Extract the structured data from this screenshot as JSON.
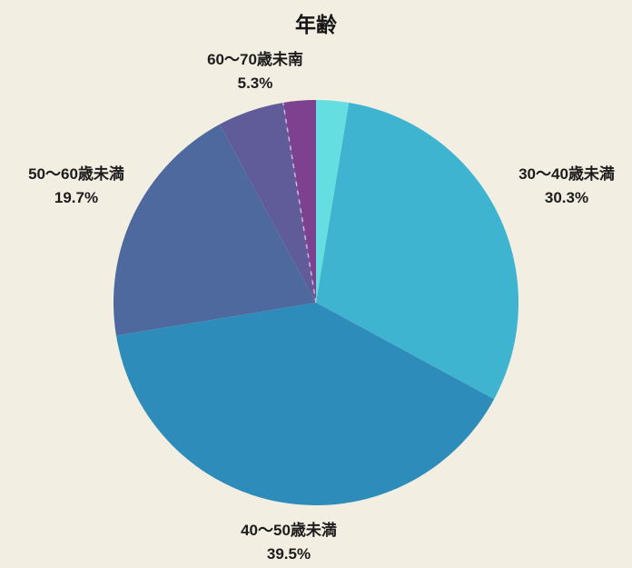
{
  "title": "年齢",
  "colors": {
    "background": "#f2eee2",
    "text": "#1c1c1c",
    "divider_dash": "#cbb9dd"
  },
  "chart_data": {
    "type": "pie",
    "title": "年齢",
    "start_angle_deg": 0,
    "direction": "clockwise",
    "legend_position": "none",
    "label_style": "outside, two lines: category above percentage",
    "segments": [
      {
        "label": "",
        "display": "",
        "value": 2.6,
        "color": "#64dee1",
        "labeled": false
      },
      {
        "label": "30〜40歳未満",
        "display": "30.3%",
        "value": 30.3,
        "color": "#3fb4d1",
        "labeled": true
      },
      {
        "label": "40〜50歳未満",
        "display": "39.5%",
        "value": 39.5,
        "color": "#2e8cba",
        "labeled": true
      },
      {
        "label": "50〜60歳未満",
        "display": "19.7%",
        "value": 19.7,
        "color": "#4d699e",
        "labeled": true
      },
      {
        "label": "60〜70歳未南",
        "display": "5.3%",
        "value": 5.3,
        "color": "#5f5c99",
        "labeled": true
      },
      {
        "label": "",
        "display": "",
        "value": 2.6,
        "color": "#7d4190",
        "labeled": false,
        "dashed_leading_edge": true
      }
    ]
  }
}
